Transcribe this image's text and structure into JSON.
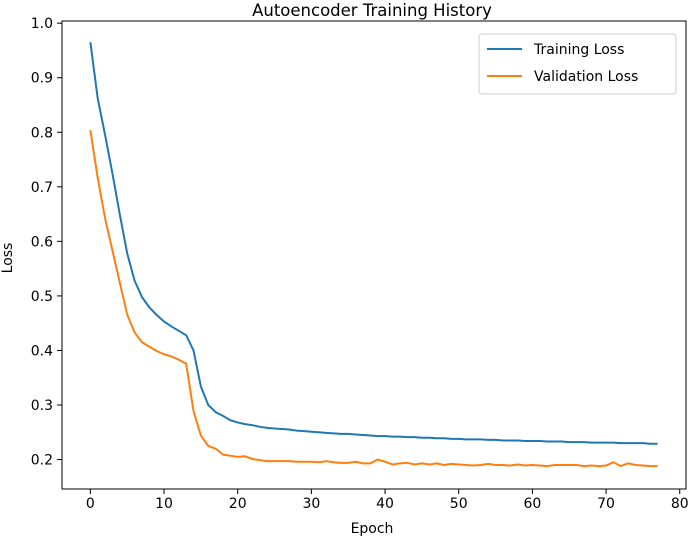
{
  "chart_data": {
    "type": "line",
    "title": "Autoencoder Training History",
    "xlabel": "Epoch",
    "ylabel": "Loss",
    "xlim": [
      -3.85,
      80.85
    ],
    "ylim": [
      0.146,
      1.004
    ],
    "xticks": [
      0,
      10,
      20,
      30,
      40,
      50,
      60,
      70,
      80
    ],
    "yticks": [
      0.2,
      0.3,
      0.4,
      0.5,
      0.6,
      0.7,
      0.8,
      0.9,
      1.0
    ],
    "ytick_labels": [
      "0.2",
      "0.3",
      "0.4",
      "0.5",
      "0.6",
      "0.7",
      "0.8",
      "0.9",
      "1.0"
    ],
    "grid": false,
    "legend_position": "top-right",
    "series": [
      {
        "name": "Training Loss",
        "color": "#1f77b4",
        "x": [
          0,
          1,
          2,
          3,
          4,
          5,
          6,
          7,
          8,
          9,
          10,
          11,
          12,
          13,
          14,
          15,
          16,
          17,
          18,
          19,
          20,
          21,
          22,
          23,
          24,
          25,
          26,
          27,
          28,
          29,
          30,
          31,
          32,
          33,
          34,
          35,
          36,
          37,
          38,
          39,
          40,
          41,
          42,
          43,
          44,
          45,
          46,
          47,
          48,
          49,
          50,
          51,
          52,
          53,
          54,
          55,
          56,
          57,
          58,
          59,
          60,
          61,
          62,
          63,
          64,
          65,
          66,
          67,
          68,
          69,
          70,
          71,
          72,
          73,
          74,
          75,
          76,
          77
        ],
        "values": [
          0.965,
          0.862,
          0.795,
          0.724,
          0.649,
          0.578,
          0.528,
          0.498,
          0.479,
          0.465,
          0.453,
          0.444,
          0.436,
          0.428,
          0.4,
          0.334,
          0.3,
          0.287,
          0.28,
          0.272,
          0.268,
          0.265,
          0.263,
          0.26,
          0.258,
          0.257,
          0.256,
          0.255,
          0.253,
          0.252,
          0.251,
          0.25,
          0.249,
          0.248,
          0.247,
          0.247,
          0.246,
          0.245,
          0.244,
          0.243,
          0.243,
          0.242,
          0.242,
          0.241,
          0.241,
          0.24,
          0.24,
          0.239,
          0.239,
          0.238,
          0.238,
          0.237,
          0.237,
          0.237,
          0.236,
          0.236,
          0.235,
          0.235,
          0.235,
          0.234,
          0.234,
          0.234,
          0.233,
          0.233,
          0.233,
          0.232,
          0.232,
          0.232,
          0.231,
          0.231,
          0.231,
          0.231,
          0.23,
          0.23,
          0.23,
          0.23,
          0.229,
          0.229
        ]
      },
      {
        "name": "Validation Loss",
        "color": "#ff7f0e",
        "x": [
          0,
          1,
          2,
          3,
          4,
          5,
          6,
          7,
          8,
          9,
          10,
          11,
          12,
          13,
          14,
          15,
          16,
          17,
          18,
          19,
          20,
          21,
          22,
          23,
          24,
          25,
          26,
          27,
          28,
          29,
          30,
          31,
          32,
          33,
          34,
          35,
          36,
          37,
          38,
          39,
          40,
          41,
          42,
          43,
          44,
          45,
          46,
          47,
          48,
          49,
          50,
          51,
          52,
          53,
          54,
          55,
          56,
          57,
          58,
          59,
          60,
          61,
          62,
          63,
          64,
          65,
          66,
          67,
          68,
          69,
          70,
          71,
          72,
          73,
          74,
          75,
          76,
          77
        ],
        "values": [
          0.804,
          0.716,
          0.642,
          0.583,
          0.524,
          0.466,
          0.433,
          0.415,
          0.407,
          0.399,
          0.393,
          0.389,
          0.383,
          0.376,
          0.289,
          0.244,
          0.225,
          0.22,
          0.209,
          0.207,
          0.205,
          0.206,
          0.201,
          0.199,
          0.197,
          0.197,
          0.197,
          0.197,
          0.196,
          0.196,
          0.196,
          0.195,
          0.197,
          0.195,
          0.194,
          0.194,
          0.196,
          0.193,
          0.193,
          0.2,
          0.196,
          0.191,
          0.193,
          0.194,
          0.191,
          0.193,
          0.191,
          0.193,
          0.19,
          0.192,
          0.191,
          0.19,
          0.189,
          0.19,
          0.192,
          0.19,
          0.19,
          0.189,
          0.191,
          0.189,
          0.19,
          0.189,
          0.188,
          0.19,
          0.19,
          0.19,
          0.19,
          0.188,
          0.189,
          0.188,
          0.189,
          0.195,
          0.188,
          0.193,
          0.19,
          0.189,
          0.188,
          0.188
        ]
      }
    ]
  }
}
